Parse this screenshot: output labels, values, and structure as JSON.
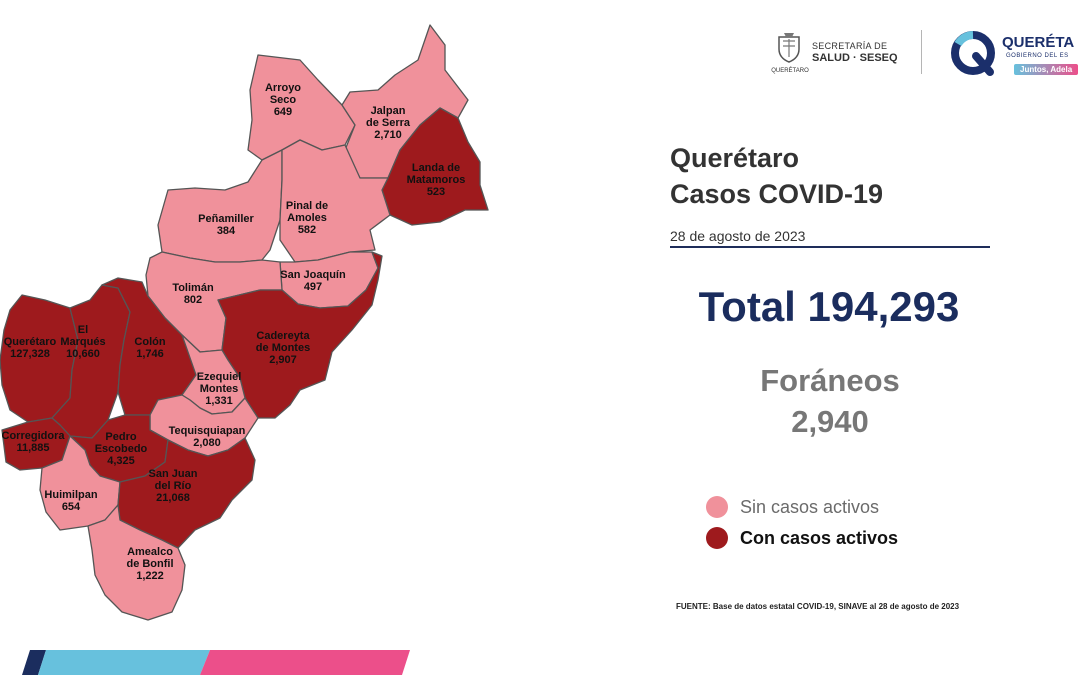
{
  "header": {
    "secretaria_line1": "SECRETARÍA DE",
    "secretaria_line2": "SALUD · SESEQ",
    "crest_caption": "QUERÉTARO",
    "gobierno_name": "QUERÉTA",
    "gobierno_sub": "GOBIERNO DEL ES",
    "gobierno_tag": "Juntos, Adela"
  },
  "title": {
    "line1": "Querétaro",
    "line2": "Casos COVID-19",
    "date": "28 de agosto de 2023"
  },
  "totals": {
    "total": "Total 194,293",
    "foraneos_label": "Foráneos",
    "foraneos_value": "2,940"
  },
  "legend": {
    "sin": {
      "label": "Sin casos activos",
      "color": "#f0919b"
    },
    "con": {
      "label": "Con casos activos",
      "color": "#9e1a1d"
    }
  },
  "source": "FUENTE: Base de datos estatal  COVID-19,  SINAVE   al 28 de agosto de 2023",
  "colors": {
    "sin": "#f0919b",
    "con": "#9e1a1d",
    "border": "#555555",
    "navy": "#1b2d5e",
    "bar_blue": "#67c1dd",
    "bar_pink": "#ec4f8a"
  },
  "municipios": [
    {
      "id": "arroyo-seco",
      "lines": [
        "Arroyo",
        "Seco",
        "649"
      ],
      "status": "sin"
    },
    {
      "id": "jalpan",
      "lines": [
        "Jalpan",
        "de Serra",
        "2,710"
      ],
      "status": "sin"
    },
    {
      "id": "landa",
      "lines": [
        "Landa de",
        "Matamoros",
        "523"
      ],
      "status": "con"
    },
    {
      "id": "penamiller",
      "lines": [
        "Peñamiller",
        "384"
      ],
      "status": "sin"
    },
    {
      "id": "pinal",
      "lines": [
        "Pinal de",
        "Amoles",
        "582"
      ],
      "status": "sin"
    },
    {
      "id": "san-joaquin",
      "lines": [
        "San Joaquín",
        "497"
      ],
      "status": "sin"
    },
    {
      "id": "toliman",
      "lines": [
        "Tolimán",
        "802"
      ],
      "status": "sin"
    },
    {
      "id": "cadereyta",
      "lines": [
        "Cadereyta",
        "de Montes",
        "2,907"
      ],
      "status": "con"
    },
    {
      "id": "queretaro",
      "lines": [
        "Querétaro",
        "127,328"
      ],
      "status": "con"
    },
    {
      "id": "el-marques",
      "lines": [
        "El",
        "Marqués",
        "10,660"
      ],
      "status": "con"
    },
    {
      "id": "colon",
      "lines": [
        "Colón",
        "1,746"
      ],
      "status": "con"
    },
    {
      "id": "ezequiel",
      "lines": [
        "Ezequiel",
        "Montes",
        "1,331"
      ],
      "status": "sin"
    },
    {
      "id": "tequisquiapan",
      "lines": [
        "Tequisquiapan",
        "2,080"
      ],
      "status": "sin"
    },
    {
      "id": "corregidora",
      "lines": [
        "Corregidora",
        "11,885"
      ],
      "status": "con"
    },
    {
      "id": "pedro-escobedo",
      "lines": [
        "Pedro",
        "Escobedo",
        "4,325"
      ],
      "status": "con"
    },
    {
      "id": "huimilpan",
      "lines": [
        "Huimilpan",
        "654"
      ],
      "status": "sin"
    },
    {
      "id": "san-juan",
      "lines": [
        "San Juan",
        "del Río",
        "21,068"
      ],
      "status": "con"
    },
    {
      "id": "amealco",
      "lines": [
        "Amealco",
        "de Bonfil",
        "1,222"
      ],
      "status": "sin"
    }
  ]
}
